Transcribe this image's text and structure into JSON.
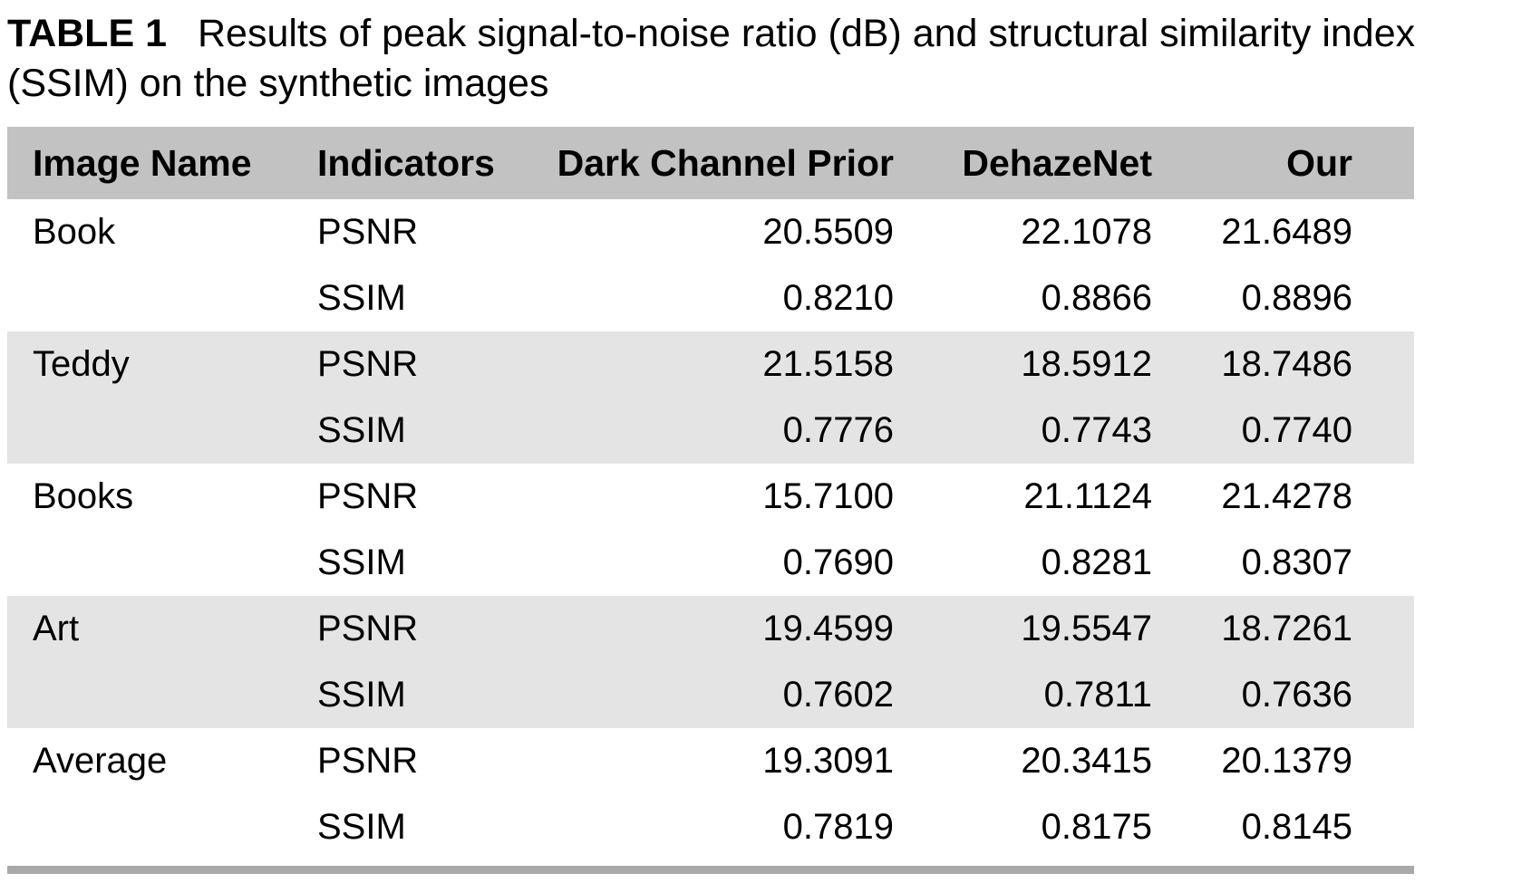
{
  "caption": {
    "label": "TABLE 1",
    "text": "Results of peak signal-to-noise ratio (dB) and structural similarity index (SSIM) on the synthetic images"
  },
  "colors": {
    "header_bg": "#c2c2c2",
    "shaded_row_bg": "#e4e4e4",
    "bottom_rule": "#a9a9a9"
  },
  "table": {
    "columns": [
      "Image Name",
      "Indicators",
      "Dark Channel Prior",
      "DehazeNet",
      "Our"
    ],
    "groups": [
      {
        "image_name": "Book",
        "rows": [
          {
            "indicator": "PSNR",
            "values": [
              "20.5509",
              "22.1078",
              "21.6489"
            ]
          },
          {
            "indicator": "SSIM",
            "values": [
              "0.8210",
              "0.8866",
              "0.8896"
            ]
          }
        ]
      },
      {
        "image_name": "Teddy",
        "rows": [
          {
            "indicator": "PSNR",
            "values": [
              "21.5158",
              "18.5912",
              "18.7486"
            ]
          },
          {
            "indicator": "SSIM",
            "values": [
              "0.7776",
              "0.7743",
              "0.7740"
            ]
          }
        ]
      },
      {
        "image_name": "Books",
        "rows": [
          {
            "indicator": "PSNR",
            "values": [
              "15.7100",
              "21.1124",
              "21.4278"
            ]
          },
          {
            "indicator": "SSIM",
            "values": [
              "0.7690",
              "0.8281",
              "0.8307"
            ]
          }
        ]
      },
      {
        "image_name": "Art",
        "rows": [
          {
            "indicator": "PSNR",
            "values": [
              "19.4599",
              "19.5547",
              "18.7261"
            ]
          },
          {
            "indicator": "SSIM",
            "values": [
              "0.7602",
              "0.7811",
              "0.7636"
            ]
          }
        ]
      },
      {
        "image_name": "Average",
        "rows": [
          {
            "indicator": "PSNR",
            "values": [
              "19.3091",
              "20.3415",
              "20.1379"
            ]
          },
          {
            "indicator": "SSIM",
            "values": [
              "0.7819",
              "0.8175",
              "0.8145"
            ]
          }
        ]
      }
    ]
  }
}
